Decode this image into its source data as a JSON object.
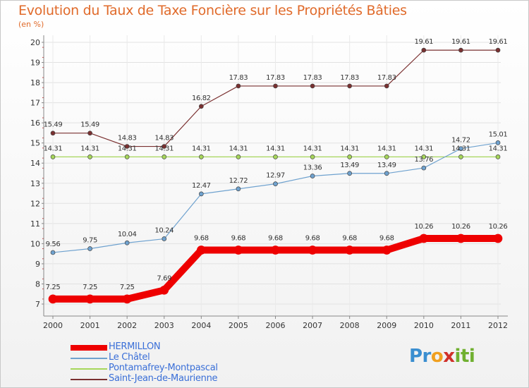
{
  "title": "Evolution du Taux de Taxe Foncière sur les Propriétés Bâties",
  "unit": "(en %)",
  "logo": {
    "parts": [
      "Pr",
      "o",
      "x",
      "iti"
    ],
    "colors": [
      "#3a8ed0",
      "#f0a020",
      "#d0302a",
      "#70b030"
    ]
  },
  "chart_data": {
    "type": "line",
    "title": "Evolution du Taux de Taxe Foncière sur les Propriétés Bâties",
    "ylabel": "(en %)",
    "xlabel": "",
    "categories": [
      "2000",
      "2001",
      "2002",
      "2003",
      "2004",
      "2005",
      "2006",
      "2007",
      "2008",
      "2009",
      "2010",
      "2011",
      "2012"
    ],
    "y_ticks": [
      7,
      8,
      9,
      10,
      11,
      12,
      13,
      14,
      15,
      16,
      17,
      18,
      19,
      20
    ],
    "ylim": [
      7,
      20
    ],
    "series": [
      {
        "name": "HERMILLON",
        "color": "#ee0000",
        "values": [
          7.25,
          7.25,
          7.25,
          7.69,
          9.68,
          9.68,
          9.68,
          9.68,
          9.68,
          9.68,
          10.26,
          10.26,
          10.26
        ],
        "labels": [
          "7.25",
          "7.25",
          "7.25",
          "7.69",
          "9.68",
          "9.68",
          "9.68",
          "9.68",
          "9.68",
          "9.68",
          "10.26",
          "10.26",
          "10.26"
        ]
      },
      {
        "name": "Le Châtel",
        "color": "#6fa2cf",
        "values": [
          9.56,
          9.75,
          10.04,
          10.24,
          12.47,
          12.72,
          12.97,
          13.36,
          13.49,
          13.49,
          13.76,
          14.72,
          15.01
        ],
        "labels": [
          "9.56",
          "9.75",
          "10.04",
          "10.24",
          "12.47",
          "12.72",
          "12.97",
          "13.36",
          "13.49",
          "13.49",
          "13.76",
          "14.72",
          "15.01"
        ]
      },
      {
        "name": "Pontamafrey-Montpascal",
        "color": "#a6d65a",
        "values": [
          14.31,
          14.31,
          14.31,
          14.31,
          14.31,
          14.31,
          14.31,
          14.31,
          14.31,
          14.31,
          14.31,
          14.31,
          14.31
        ],
        "labels": [
          "14.31",
          "14.31",
          "14.31",
          "14.31",
          "14.31",
          "14.31",
          "14.31",
          "14.31",
          "14.31",
          "14.31",
          "14.31",
          "14.31",
          "14.31"
        ]
      },
      {
        "name": "Saint-Jean-de-Maurienne",
        "color": "#7a3030",
        "values": [
          15.49,
          15.49,
          14.83,
          14.83,
          16.82,
          17.83,
          17.83,
          17.83,
          17.83,
          17.83,
          19.61,
          19.61,
          19.61
        ],
        "labels": [
          "15.49",
          "15.49",
          "14.83",
          "14.83",
          "16.82",
          "17.83",
          "17.83",
          "17.83",
          "17.83",
          "17.83",
          "19.61",
          "19.61",
          "19.61"
        ]
      }
    ]
  }
}
